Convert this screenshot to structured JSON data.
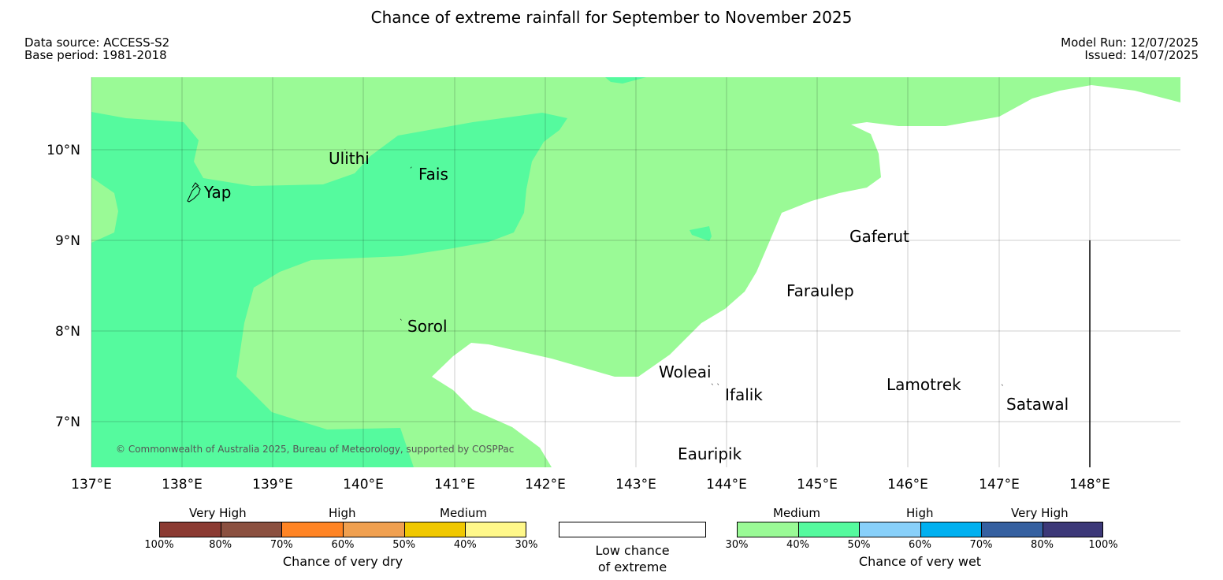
{
  "header": {
    "title": "Chance of extreme rainfall for September to November 2025",
    "data_source": "Data source: ACCESS-S2",
    "base_period": "Base period: 1981-2018",
    "model_run": "Model Run: 12/07/2025",
    "issued": "Issued: 14/07/2025"
  },
  "map": {
    "lat_labels": [
      "10°N",
      "9°N",
      "8°N",
      "7°N"
    ],
    "lon_labels": [
      "137°E",
      "138°E",
      "139°E",
      "140°E",
      "141°E",
      "142°E",
      "143°E",
      "144°E",
      "145°E",
      "146°E",
      "147°E",
      "148°E"
    ],
    "places": [
      "Yap",
      "Ulithi",
      "Fais",
      "Sorol",
      "Gaferut",
      "Faraulep",
      "Woleai",
      "Ifalik",
      "Lamotrek",
      "Satawal",
      "Eauripik"
    ],
    "copyright": "© Commonwealth of Australia 2025, Bureau of Meteorology, supported by COSPPac",
    "colors": {
      "medium_wet": "#9afa96",
      "high_wet_40_50": "#55fa9e",
      "low": "#ffffff"
    }
  },
  "legend": {
    "dry": {
      "categories": [
        "Very High",
        "High",
        "Medium"
      ],
      "colors": [
        "#8b3a32",
        "#8b5040",
        "#ff8424",
        "#f0a050",
        "#f0c800",
        "#fff88a"
      ],
      "ticks": [
        "100%",
        "80%",
        "70%",
        "60%",
        "50%",
        "40%",
        "30%"
      ],
      "title": "Chance of very dry"
    },
    "low": {
      "title_line1": "Low chance",
      "title_line2": "of extreme"
    },
    "wet": {
      "categories": [
        "Medium",
        "High",
        "Very High"
      ],
      "colors": [
        "#9afa96",
        "#55fa9e",
        "#88d0fa",
        "#00b0f0",
        "#3560a0",
        "#3c3878"
      ],
      "ticks": [
        "30%",
        "40%",
        "50%",
        "60%",
        "70%",
        "80%",
        "100%"
      ],
      "title": "Chance of very wet"
    }
  }
}
